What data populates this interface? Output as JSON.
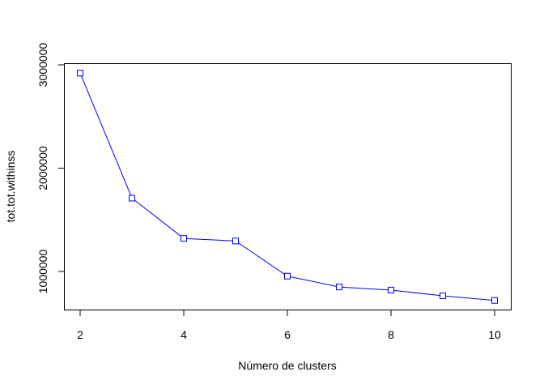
{
  "chart_data": {
    "type": "line",
    "title": "",
    "xlabel": "Número de clusters",
    "ylabel": "tot.tot.withinss",
    "x": [
      2,
      3,
      4,
      5,
      6,
      7,
      8,
      9,
      10
    ],
    "series": [
      {
        "values": [
          2920000,
          1710000,
          1320000,
          1295000,
          955000,
          850000,
          820000,
          765000,
          720000
        ],
        "color": "#0000ff",
        "marker": "square-open"
      }
    ],
    "xlim": [
      2,
      10
    ],
    "ylim": [
      650000,
      3000000
    ],
    "x_ticks": [
      "2",
      "4",
      "6",
      "8",
      "10"
    ],
    "y_ticks": [
      "1000000",
      "2000000",
      "3000000"
    ],
    "grid": false,
    "legend": "none"
  }
}
